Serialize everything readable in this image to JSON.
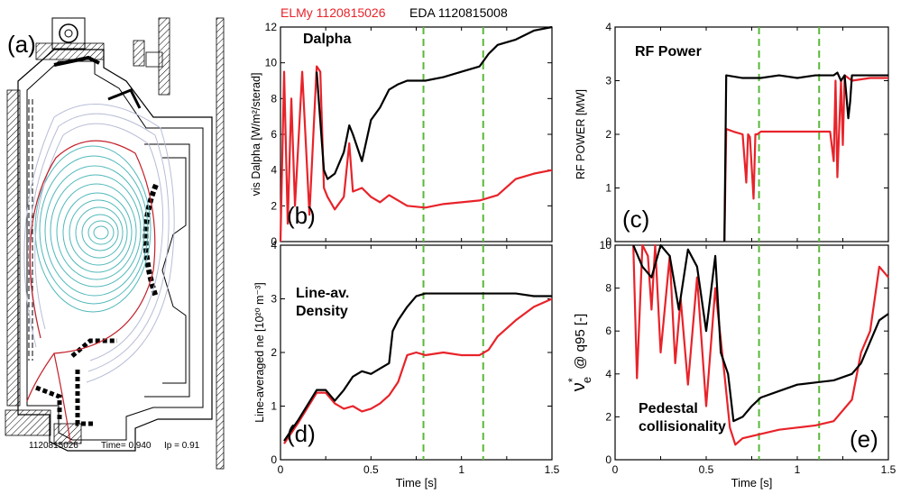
{
  "figure": {
    "header": {
      "elmy_label": "ELMy 1120815026",
      "eda_label": "EDA 1120815008",
      "elmy_color": "#e8232a",
      "eda_color": "#000000"
    },
    "panel_a": {
      "letter": "(a)",
      "footer_shot": "1120815026",
      "footer_time": "Time= 0.940",
      "footer_ip": "Ip = 0.91"
    },
    "marker_color": "#5ab839"
  },
  "chart_data": [
    {
      "id": "b",
      "type": "line",
      "panel_letter": "(b)",
      "title": "Dalpha",
      "ylabel": "vis Dalpha [W/m²/sterad]",
      "xlim": [
        0,
        1.5
      ],
      "ylim": [
        0,
        12
      ],
      "y_ticks": [
        0,
        2,
        4,
        6,
        8,
        10,
        12
      ],
      "x_ticks": [],
      "vlines": [
        0.79,
        1.12
      ],
      "series": [
        {
          "name": "ELMy 1120815026",
          "color": "#e8232a",
          "x": [
            0.0,
            0.02,
            0.04,
            0.06,
            0.08,
            0.12,
            0.16,
            0.2,
            0.22,
            0.24,
            0.26,
            0.3,
            0.35,
            0.38,
            0.4,
            0.45,
            0.5,
            0.55,
            0.6,
            0.7,
            0.8,
            0.9,
            1.0,
            1.1,
            1.2,
            1.3,
            1.4,
            1.5
          ],
          "y": [
            0.0,
            9.5,
            1.0,
            8.0,
            2.0,
            9.5,
            1.5,
            9.8,
            9.5,
            3.0,
            2.5,
            1.8,
            2.5,
            5.5,
            2.8,
            3.0,
            2.5,
            2.2,
            2.6,
            2.0,
            1.9,
            2.1,
            2.2,
            2.3,
            2.6,
            3.5,
            3.8,
            4.0
          ]
        },
        {
          "name": "EDA 1120815008",
          "color": "#000000",
          "x": [
            0.2,
            0.24,
            0.26,
            0.3,
            0.35,
            0.38,
            0.4,
            0.45,
            0.5,
            0.55,
            0.6,
            0.65,
            0.7,
            0.75,
            0.8,
            0.9,
            1.0,
            1.1,
            1.15,
            1.2,
            1.3,
            1.4,
            1.5
          ],
          "y": [
            9.5,
            4.0,
            3.5,
            3.8,
            5.0,
            6.5,
            6.0,
            4.5,
            6.8,
            7.5,
            8.5,
            8.8,
            9.0,
            9.0,
            9.0,
            9.2,
            9.5,
            9.8,
            10.5,
            11.0,
            11.3,
            11.8,
            12.0
          ]
        }
      ]
    },
    {
      "id": "c",
      "type": "line",
      "panel_letter": "(c)",
      "title": "RF  Power",
      "ylabel": "RF POWER [MW]",
      "xlim": [
        0,
        1.5
      ],
      "ylim": [
        0,
        4
      ],
      "y_ticks": [
        0,
        1,
        2,
        3,
        4
      ],
      "x_ticks": [],
      "vlines": [
        0.79,
        1.12
      ],
      "series": [
        {
          "name": "ELMy 1120815026",
          "color": "#e8232a",
          "x": [
            0.6,
            0.61,
            0.65,
            0.7,
            0.72,
            0.73,
            0.74,
            0.76,
            0.77,
            0.78,
            0.8,
            0.9,
            1.0,
            1.1,
            1.18,
            1.2,
            1.21,
            1.22,
            1.24,
            1.25,
            1.26,
            1.3,
            1.4,
            1.5
          ],
          "y": [
            0.0,
            2.1,
            2.05,
            2.0,
            1.1,
            2.0,
            1.95,
            0.8,
            2.0,
            2.0,
            2.05,
            2.05,
            2.05,
            2.05,
            2.05,
            1.5,
            3.0,
            1.2,
            3.0,
            1.8,
            3.1,
            3.0,
            3.05,
            3.05
          ]
        },
        {
          "name": "EDA 1120815008",
          "color": "#000000",
          "x": [
            0.6,
            0.61,
            0.7,
            0.8,
            0.9,
            1.0,
            1.1,
            1.2,
            1.22,
            1.24,
            1.26,
            1.28,
            1.29,
            1.3,
            1.4,
            1.5
          ],
          "y": [
            0.0,
            3.1,
            3.05,
            3.05,
            3.1,
            3.05,
            3.1,
            3.1,
            3.15,
            3.0,
            3.1,
            2.3,
            2.6,
            3.1,
            3.1,
            3.1
          ]
        }
      ]
    },
    {
      "id": "d",
      "type": "line",
      "panel_letter": "(d)",
      "title": "Line-av.\nDensity",
      "ylabel": "Line-averaged ne [10²⁰ m⁻³]",
      "xlabel": "Time [s]",
      "xlim": [
        0,
        1.5
      ],
      "ylim": [
        0,
        4
      ],
      "y_ticks": [
        0,
        1,
        2,
        3,
        4
      ],
      "x_ticks": [
        0,
        0.5,
        1,
        1.5
      ],
      "x_tick_labels": [
        "0",
        "0.5",
        "1",
        "1.5"
      ],
      "vlines": [
        0.79,
        1.12
      ],
      "series": [
        {
          "name": "ELMy 1120815026",
          "color": "#e8232a",
          "x": [
            0.02,
            0.1,
            0.2,
            0.25,
            0.3,
            0.35,
            0.4,
            0.45,
            0.5,
            0.55,
            0.6,
            0.65,
            0.7,
            0.75,
            0.8,
            0.9,
            1.0,
            1.1,
            1.15,
            1.2,
            1.3,
            1.4,
            1.5
          ],
          "y": [
            0.3,
            0.7,
            1.25,
            1.25,
            1.05,
            0.95,
            1.0,
            0.9,
            0.95,
            1.05,
            1.2,
            1.45,
            1.95,
            2.0,
            1.95,
            2.0,
            1.95,
            1.95,
            2.05,
            2.3,
            2.6,
            2.85,
            3.0
          ]
        },
        {
          "name": "EDA 1120815008",
          "color": "#000000",
          "x": [
            0.02,
            0.1,
            0.2,
            0.25,
            0.3,
            0.35,
            0.4,
            0.45,
            0.5,
            0.55,
            0.6,
            0.62,
            0.65,
            0.7,
            0.75,
            0.8,
            0.9,
            1.0,
            1.1,
            1.2,
            1.3,
            1.4,
            1.5
          ],
          "y": [
            0.35,
            0.75,
            1.3,
            1.3,
            1.1,
            1.3,
            1.55,
            1.65,
            1.6,
            1.7,
            1.8,
            2.4,
            2.6,
            2.85,
            3.05,
            3.1,
            3.1,
            3.1,
            3.1,
            3.1,
            3.1,
            3.05,
            3.05
          ]
        }
      ]
    },
    {
      "id": "e",
      "type": "line",
      "panel_letter": "(e)",
      "title": "Pedestal\ncollisionality",
      "ylabel_main": "ν",
      "ylabel_sup": "*",
      "ylabel_sub": "e",
      "ylabel_tail": "@ q95 [-]",
      "xlabel": "Time [s]",
      "xlim": [
        0,
        1.5
      ],
      "ylim": [
        0,
        10
      ],
      "y_ticks": [
        0,
        2,
        4,
        6,
        8,
        10
      ],
      "x_ticks": [
        0,
        0.5,
        1,
        1.5
      ],
      "x_tick_labels": [
        "0",
        "0.5",
        "1",
        "1.5"
      ],
      "vlines": [
        0.79,
        1.12
      ],
      "series": [
        {
          "name": "ELMy 1120815026",
          "color": "#e8232a",
          "x": [
            0.1,
            0.12,
            0.15,
            0.18,
            0.2,
            0.22,
            0.25,
            0.3,
            0.33,
            0.36,
            0.4,
            0.45,
            0.5,
            0.55,
            0.6,
            0.63,
            0.66,
            0.7,
            0.8,
            0.9,
            1.0,
            1.1,
            1.2,
            1.3,
            1.35,
            1.4,
            1.45,
            1.5
          ],
          "y": [
            10.0,
            3.8,
            10.0,
            9.5,
            7.0,
            10.0,
            5.0,
            9.5,
            4.5,
            7.5,
            3.5,
            8.5,
            2.5,
            8.0,
            4.0,
            1.5,
            0.7,
            1.0,
            1.2,
            1.4,
            1.5,
            1.6,
            1.8,
            2.8,
            5.0,
            6.0,
            9.0,
            8.5
          ]
        },
        {
          "name": "EDA 1120815008",
          "color": "#000000",
          "x": [
            0.1,
            0.15,
            0.2,
            0.25,
            0.3,
            0.35,
            0.4,
            0.45,
            0.5,
            0.55,
            0.58,
            0.62,
            0.65,
            0.7,
            0.75,
            0.8,
            0.9,
            1.0,
            1.1,
            1.2,
            1.3,
            1.35,
            1.4,
            1.45,
            1.5
          ],
          "y": [
            10.0,
            9.0,
            8.5,
            10.0,
            9.5,
            7.0,
            9.8,
            9.0,
            6.0,
            9.5,
            5.0,
            4.0,
            1.8,
            2.0,
            2.5,
            2.9,
            3.2,
            3.5,
            3.6,
            3.7,
            4.0,
            4.5,
            5.5,
            6.5,
            6.8
          ]
        }
      ]
    }
  ]
}
